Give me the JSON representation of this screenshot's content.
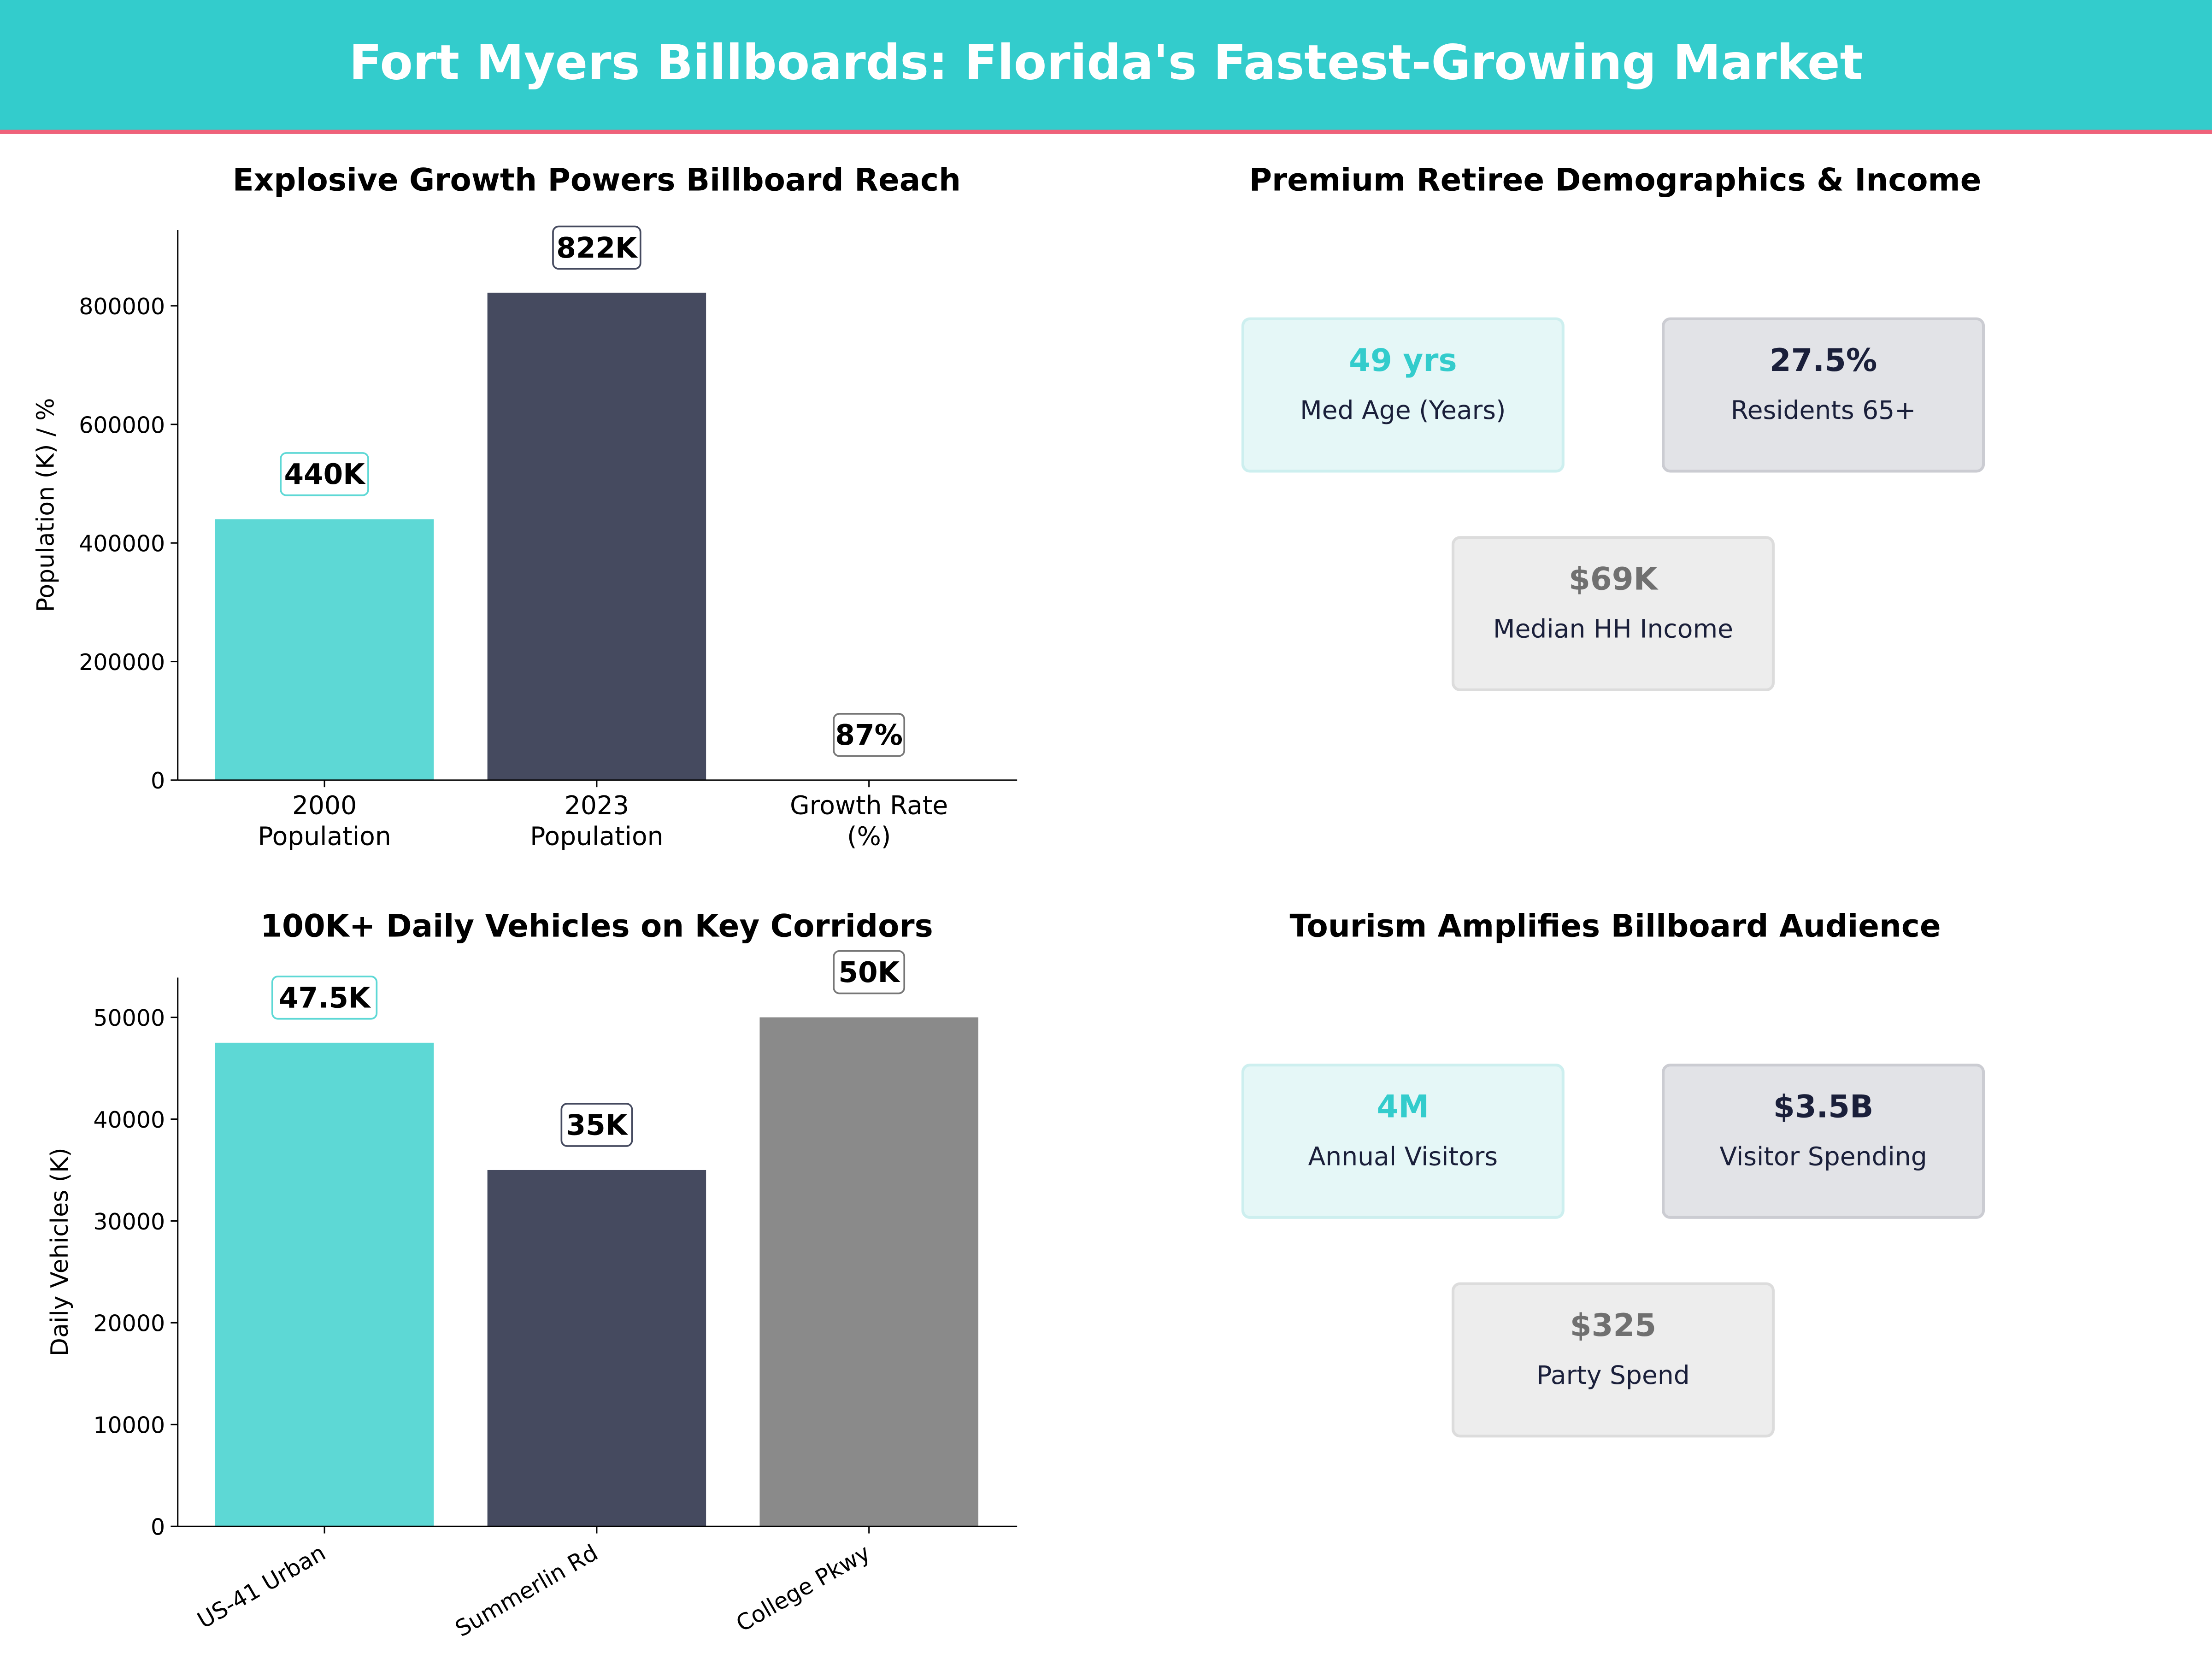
{
  "header": {
    "title": "Fort Myers Billboards: Florida's Fastest-Growing Market"
  },
  "colors": {
    "teal": "#5DD8D5",
    "navy": "#454A5F",
    "gray": "#8A8A8A",
    "header": "#33CCCC",
    "accent_line": "#F0627A"
  },
  "chart_data": [
    {
      "type": "bar",
      "title": "Explosive Growth Powers Billboard Reach",
      "ylabel": "Population (K) / %",
      "categories": [
        "2000\nPopulation",
        "2023\nPopulation",
        "Growth Rate\n(%)"
      ],
      "values": [
        440000,
        822000,
        87
      ],
      "data_labels": [
        "440K",
        "822K",
        "87%"
      ],
      "bar_colors": [
        "#5DD8D5",
        "#454A5F",
        "#8A8A8A"
      ],
      "yticks": [
        0,
        200000,
        400000,
        600000,
        800000
      ],
      "ylim": [
        0,
        928000
      ]
    },
    {
      "type": "bar",
      "title": "100K+ Daily Vehicles on Key Corridors",
      "ylabel": "Daily Vehicles (K)",
      "categories": [
        "US-41 Urban",
        "Summerlin Rd",
        "College Pkwy"
      ],
      "values": [
        47500,
        35000,
        50000
      ],
      "data_labels": [
        "47.5K",
        "35K",
        "50K"
      ],
      "bar_colors": [
        "#5DD8D5",
        "#454A5F",
        "#8A8A8A"
      ],
      "yticks": [
        0,
        10000,
        20000,
        30000,
        40000,
        50000
      ],
      "ylim": [
        0,
        53900
      ]
    }
  ],
  "demographics": {
    "title": "Premium Retiree Demographics & Income",
    "cards": [
      {
        "value": "49 yrs",
        "label": "Med Age (Years)"
      },
      {
        "value": "27.5%",
        "label": "Residents 65+"
      },
      {
        "value": "$69K",
        "label": "Median HH Income"
      }
    ]
  },
  "tourism": {
    "title": "Tourism Amplifies Billboard Audience",
    "cards": [
      {
        "value": "4M",
        "label": "Annual Visitors"
      },
      {
        "value": "$3.5B",
        "label": "Visitor Spending"
      },
      {
        "value": "$325",
        "label": "Party Spend"
      }
    ]
  }
}
